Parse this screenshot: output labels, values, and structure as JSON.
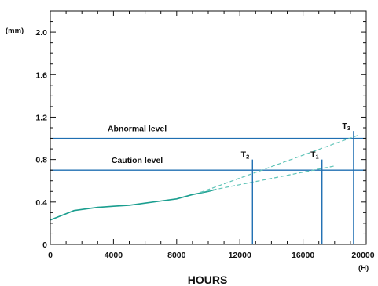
{
  "chart_data": {
    "type": "line",
    "xlabel": "HOURS",
    "x_unit": "(H)",
    "y_unit": "(mm)",
    "xlim": [
      0,
      20000
    ],
    "ylim": [
      0,
      2.2
    ],
    "x_ticks": [
      0,
      4000,
      8000,
      12000,
      16000,
      20000
    ],
    "y_ticks": [
      0,
      0.4,
      0.8,
      1.2,
      1.6,
      2.0
    ],
    "grid": false,
    "series": [
      {
        "kind": "measured",
        "color": "#1a9e8f",
        "x": [
          0,
          500,
          1000,
          1500,
          2000,
          3000,
          4000,
          5000,
          6000,
          7000,
          8000,
          9000,
          10000,
          10500
        ],
        "y": [
          0.23,
          0.26,
          0.29,
          0.32,
          0.33,
          0.35,
          0.36,
          0.37,
          0.39,
          0.41,
          0.43,
          0.47,
          0.5,
          0.52
        ]
      },
      {
        "kind": "projection",
        "color": "#5fc4b8",
        "x": [
          9500,
          19500
        ],
        "y": [
          0.49,
          1.03
        ]
      },
      {
        "kind": "projection",
        "color": "#5fc4b8",
        "x": [
          9500,
          18000
        ],
        "y": [
          0.49,
          0.74
        ]
      }
    ],
    "levels": [
      {
        "label": "Abnormal level",
        "value": 1.0,
        "color": "#1f6fb2"
      },
      {
        "label": "Caution level",
        "value": 0.7,
        "color": "#1f6fb2"
      }
    ],
    "markers": [
      {
        "label": "T",
        "sub": "2",
        "x": 12800,
        "top": 0.8
      },
      {
        "label": "T",
        "sub": "1",
        "x": 17200,
        "top": 0.8
      },
      {
        "label": "T",
        "sub": "3",
        "x": 19200,
        "top": 1.07
      }
    ],
    "colors": {
      "axis": "#111111",
      "level": "#1f6fb2",
      "marker": "#1f6fb2"
    }
  }
}
